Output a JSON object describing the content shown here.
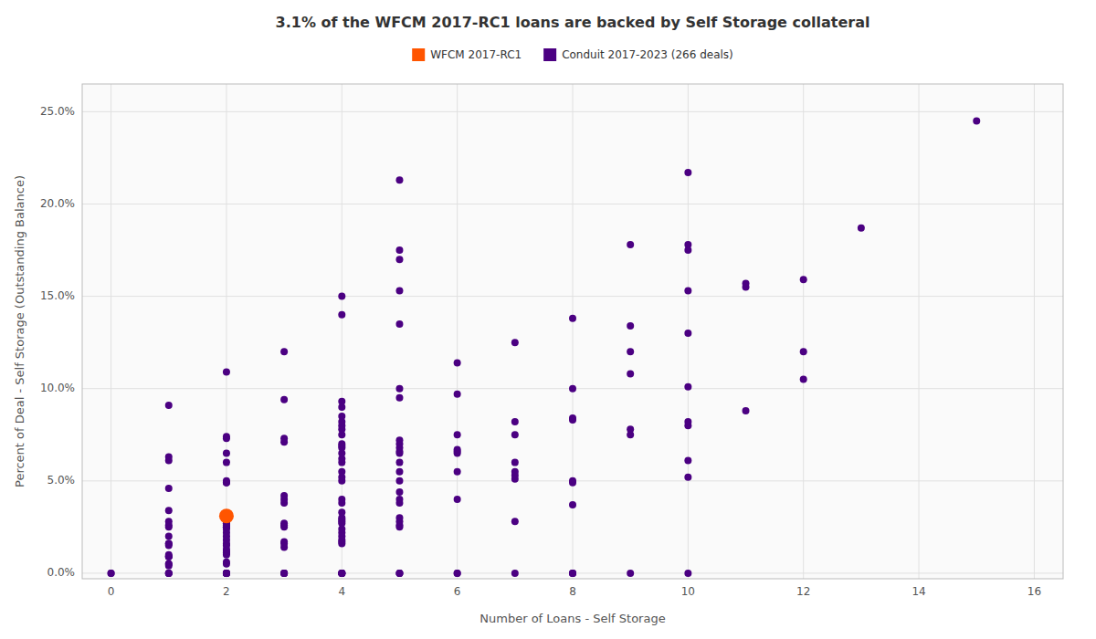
{
  "chart_data": {
    "type": "scatter",
    "title": "3.1% of the WFCM 2017-RC1 loans are backed by Self Storage collateral",
    "x_label": "Number of Loans - Self Storage",
    "y_label": "Percent of Deal - Self Storage (Outstanding Balance)",
    "xlim": [
      -0.5,
      16.5
    ],
    "ylim": [
      -0.003,
      0.265
    ],
    "xticks": [
      0,
      2,
      4,
      6,
      8,
      10,
      12,
      14,
      16
    ],
    "yticks": [
      {
        "value": 0.0,
        "label": "0.0%"
      },
      {
        "value": 0.05,
        "label": "5.0%"
      },
      {
        "value": 0.1,
        "label": "10.0%"
      },
      {
        "value": 0.15,
        "label": "15.0%"
      },
      {
        "value": 0.2,
        "label": "20.0%"
      },
      {
        "value": 0.25,
        "label": "25.0%"
      }
    ],
    "grid": true,
    "legend": "top",
    "series": [
      {
        "name": "WFCM 2017-RC1",
        "color": "#ff5500",
        "x": [
          2
        ],
        "values": [
          0.031
        ]
      },
      {
        "name": "Conduit 2017-2023 (266 deals)",
        "color": "#4b0082",
        "x": [
          0,
          0,
          1,
          1,
          1,
          1,
          1,
          1,
          1,
          1,
          1,
          1,
          1,
          1,
          1,
          1,
          1,
          1,
          1,
          1,
          1,
          1,
          1,
          1,
          2,
          2,
          2,
          2,
          2,
          2,
          2,
          2,
          2,
          2,
          2,
          2,
          2,
          2,
          2,
          2,
          2,
          2,
          2,
          2,
          2,
          2,
          2,
          2,
          2,
          2,
          2,
          2,
          2,
          2,
          2,
          2,
          2,
          2,
          2,
          2,
          3,
          3,
          3,
          3,
          3,
          3,
          3,
          3,
          3,
          3,
          3,
          3,
          3,
          3,
          3,
          3,
          3,
          4,
          4,
          4,
          4,
          4,
          4,
          4,
          4,
          4,
          4,
          4,
          4,
          4,
          4,
          4,
          4,
          4,
          4,
          4,
          4,
          4,
          4,
          4,
          4,
          4,
          4,
          4,
          4,
          4,
          4,
          4,
          4,
          4,
          4,
          4,
          4,
          4,
          5,
          5,
          5,
          5,
          5,
          5,
          5,
          5,
          5,
          5,
          5,
          5,
          5,
          5,
          5,
          5,
          5,
          5,
          5,
          5,
          5,
          5,
          5,
          5,
          5,
          6,
          6,
          6,
          6,
          6,
          6,
          6,
          6,
          6,
          6,
          7,
          7,
          7,
          7,
          7,
          7,
          7,
          7,
          7,
          8,
          8,
          8,
          8,
          8,
          8,
          8,
          8,
          8,
          8,
          9,
          9,
          9,
          9,
          9,
          9,
          9,
          10,
          10,
          10,
          10,
          10,
          10,
          10,
          10,
          10,
          10,
          10,
          11,
          11,
          11,
          12,
          12,
          12,
          13,
          15
        ],
        "values": [
          0.0,
          0.0,
          0.0,
          0.0,
          0.0,
          0.004,
          0.005,
          0.005,
          0.009,
          0.009,
          0.009,
          0.01,
          0.015,
          0.016,
          0.016,
          0.02,
          0.025,
          0.026,
          0.028,
          0.034,
          0.046,
          0.061,
          0.063,
          0.091,
          0.0,
          0.0,
          0.0,
          0.0,
          0.0,
          0.0,
          0.005,
          0.006,
          0.01,
          0.011,
          0.011,
          0.012,
          0.013,
          0.015,
          0.016,
          0.018,
          0.02,
          0.022,
          0.024,
          0.025,
          0.025,
          0.025,
          0.026,
          0.027,
          0.027,
          0.028,
          0.029,
          0.029,
          0.049,
          0.049,
          0.05,
          0.06,
          0.065,
          0.073,
          0.074,
          0.109,
          0.0,
          0.0,
          0.0,
          0.0,
          0.014,
          0.016,
          0.017,
          0.025,
          0.026,
          0.027,
          0.038,
          0.04,
          0.042,
          0.071,
          0.073,
          0.094,
          0.12,
          0.0,
          0.0,
          0.0,
          0.0,
          0.0,
          0.0,
          0.016,
          0.017,
          0.018,
          0.02,
          0.022,
          0.024,
          0.027,
          0.028,
          0.029,
          0.03,
          0.033,
          0.038,
          0.04,
          0.05,
          0.052,
          0.055,
          0.06,
          0.062,
          0.065,
          0.068,
          0.069,
          0.07,
          0.075,
          0.078,
          0.08,
          0.082,
          0.085,
          0.09,
          0.093,
          0.14,
          0.15,
          0.0,
          0.0,
          0.0,
          0.025,
          0.026,
          0.028,
          0.03,
          0.038,
          0.04,
          0.044,
          0.05,
          0.055,
          0.06,
          0.065,
          0.066,
          0.068,
          0.07,
          0.072,
          0.095,
          0.1,
          0.135,
          0.153,
          0.17,
          0.175,
          0.213,
          0.0,
          0.0,
          0.04,
          0.055,
          0.065,
          0.066,
          0.067,
          0.075,
          0.097,
          0.114,
          0.0,
          0.028,
          0.051,
          0.053,
          0.055,
          0.06,
          0.075,
          0.082,
          0.125,
          0.0,
          0.0,
          0.0,
          0.037,
          0.049,
          0.05,
          0.083,
          0.084,
          0.1,
          0.138,
          0.0,
          0.075,
          0.078,
          0.108,
          0.12,
          0.134,
          0.178,
          0.0,
          0.052,
          0.061,
          0.08,
          0.082,
          0.101,
          0.13,
          0.153,
          0.175,
          0.178,
          0.217,
          0.088,
          0.155,
          0.157,
          0.105,
          0.12,
          0.159,
          0.187,
          0.245
        ]
      }
    ]
  }
}
